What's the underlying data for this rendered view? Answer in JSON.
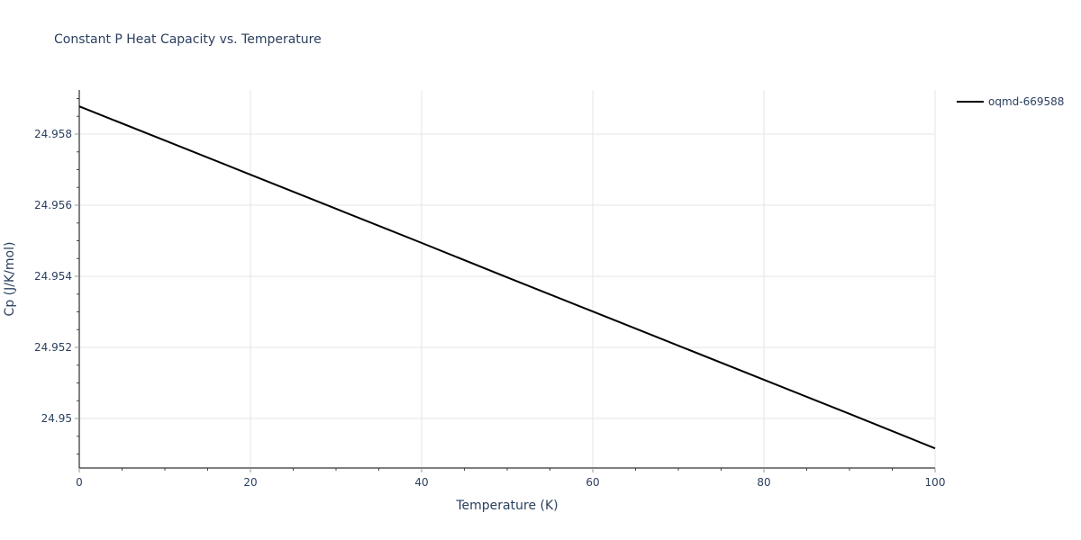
{
  "chart_data": {
    "type": "line",
    "title": "Constant P Heat Capacity vs. Temperature",
    "xlabel": "Temperature (K)",
    "ylabel": "Cp (J/K/mol)",
    "xlim": [
      0,
      100
    ],
    "ylim": [
      24.9486,
      24.9593
    ],
    "x_ticks": [
      0,
      20,
      40,
      60,
      80,
      100
    ],
    "y_ticks": [
      24.95,
      24.952,
      24.954,
      24.956,
      24.958
    ],
    "y_tick_labels": [
      "24.95",
      "24.952",
      "24.954",
      "24.956",
      "24.958"
    ],
    "grid": true,
    "legend_position": "top-right outside",
    "series": [
      {
        "name": "oqmd-669588",
        "color": "#000000",
        "x": [
          0,
          10,
          20,
          30,
          40,
          50,
          60,
          70,
          80,
          90,
          100
        ],
        "y": [
          24.95878,
          24.95782,
          24.95686,
          24.9559,
          24.95494,
          24.95397,
          24.95301,
          24.95205,
          24.95109,
          24.95013,
          24.94916
        ]
      }
    ]
  }
}
